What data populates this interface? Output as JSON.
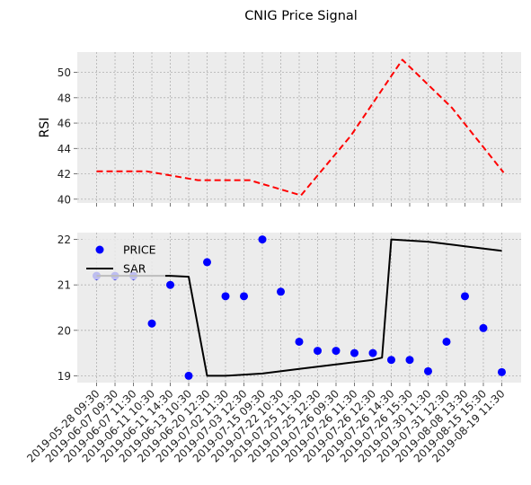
{
  "chart_data": {
    "title": "CNIG Price Signal",
    "colors": {
      "axes_bg": "#ececec",
      "grid": "#b0b0b0",
      "rsi": "#ff0000",
      "price": "#0000ff",
      "sar": "#000000"
    },
    "x": {
      "categories": [
        "2019-05-28 09:30",
        "2019-06-07 09:30",
        "2019-06-07 11:30",
        "2019-06-11 10:30",
        "2019-06-11 14:30",
        "2019-06-13 10:30",
        "2019-06-20 12:30",
        "2019-07-02 11:30",
        "2019-07-03 12:30",
        "2019-07-15 09:30",
        "2019-07-22 10:30",
        "2019-07-25 11:30",
        "2019-07-25 12:30",
        "2019-07-26 09:30",
        "2019-07-26 11:30",
        "2019-07-26 12:30",
        "2019-07-26 14:30",
        "2019-07-26 15:30",
        "2019-07-30 11:30",
        "2019-07-31 12:30",
        "2019-08-08 13:30",
        "2019-08-15 15:30",
        "2019-08-19 11:30"
      ]
    },
    "panels": [
      {
        "type": "line",
        "ylabel": "RSI",
        "ylim": [
          39.7,
          51.6
        ],
        "yticks": [
          40,
          42,
          44,
          46,
          48,
          50
        ],
        "grid": true,
        "series": [
          {
            "style": "dashed",
            "points": [
              [
                0,
                42.2
              ],
              [
                2.7,
                42.2
              ],
              [
                5.5,
                41.5
              ],
              [
                8.3,
                41.5
              ],
              [
                11.1,
                40.3
              ],
              [
                13.8,
                45.0
              ],
              [
                16.6,
                51.0
              ],
              [
                19.3,
                47.2
              ],
              [
                22.1,
                42.1
              ]
            ]
          }
        ]
      },
      {
        "type": "scatter+line",
        "ylim": [
          18.85,
          22.15
        ],
        "yticks": [
          19,
          20,
          21,
          22
        ],
        "grid": true,
        "legend": {
          "location": "upper-left"
        },
        "series": [
          {
            "name": "PRICE",
            "kind": "scatter",
            "values": [
              21.2,
              21.2,
              21.2,
              20.15,
              21.0,
              19.0,
              21.5,
              20.75,
              20.75,
              22.0,
              20.85,
              19.75,
              19.55,
              19.55,
              19.5,
              19.5,
              19.35,
              19.35,
              19.1,
              19.75,
              20.75,
              20.05,
              19.08
            ]
          },
          {
            "name": "SAR",
            "kind": "line",
            "points": [
              [
                0,
                21.2
              ],
              [
                4,
                21.2
              ],
              [
                5,
                21.18
              ],
              [
                6,
                19.0
              ],
              [
                7,
                19.0
              ],
              [
                9,
                19.05
              ],
              [
                11,
                19.15
              ],
              [
                13,
                19.25
              ],
              [
                15,
                19.35
              ],
              [
                15.5,
                19.4
              ],
              [
                16,
                22.0
              ],
              [
                18,
                21.95
              ],
              [
                20,
                21.85
              ],
              [
                22,
                21.75
              ]
            ]
          }
        ]
      }
    ]
  }
}
